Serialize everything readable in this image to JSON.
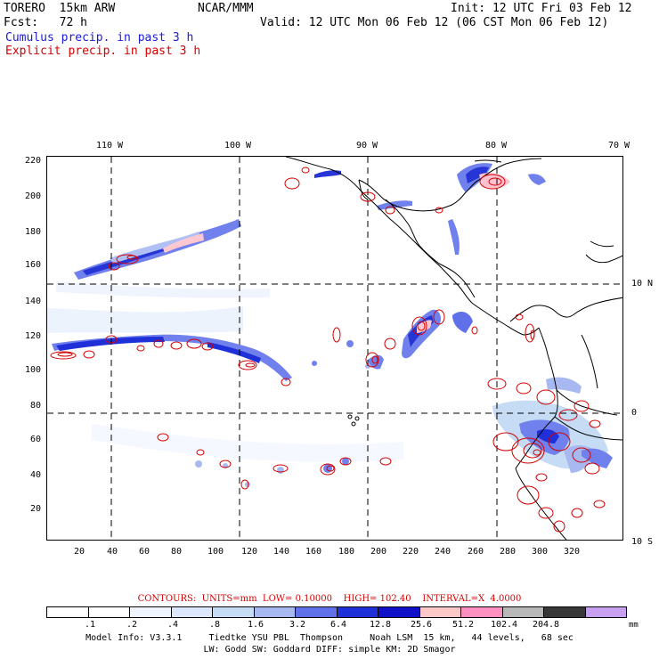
{
  "header": {
    "model": "TORERO  15km ARW",
    "center": "NCAR/MMM",
    "init": "Init: 12 UTC Fri 03 Feb 12",
    "fcst": "Fcst:   72 h",
    "valid": "Valid: 12 UTC Mon 06 Feb 12 (06 CST Mon 06 Feb 12)",
    "legend_cumulus": "Cumulus precip. in past 3 h",
    "legend_explicit": "Explicit precip. in past 3 h"
  },
  "map": {
    "top_lon_labels": [
      "110 W",
      "100 W",
      "90 W",
      "80 W",
      "70 W"
    ],
    "right_lat_labels": [
      "10 N",
      "0",
      "10 S"
    ],
    "left_ticks": [
      "220",
      "200",
      "180",
      "160",
      "140",
      "120",
      "100",
      "80",
      "60",
      "40",
      "20"
    ],
    "bottom_ticks": [
      "20",
      "40",
      "60",
      "80",
      "100",
      "120",
      "140",
      "160",
      "180",
      "200",
      "220",
      "240",
      "260",
      "280",
      "300",
      "320"
    ],
    "island_marker": "o"
  },
  "contours": {
    "label": "CONTOURS:  UNITS=mm  LOW= 0.10000    HIGH= 102.40    INTERVAL=X  4.0000"
  },
  "colorbar": {
    "labels": [
      ".1",
      ".2",
      ".4",
      ".8",
      "1.6",
      "3.2",
      "6.4",
      "12.8",
      "25.6",
      "51.2",
      "102.4",
      "204.8"
    ],
    "unit": "mm",
    "colors": [
      "#ffffff",
      "#ffffff",
      "#f0f4ff",
      "#dde8ff",
      "#c6dcf5",
      "#a8b8f0",
      "#6070e8",
      "#2030d8",
      "#1010c8",
      "#ffc8c8",
      "#ff90c0",
      "#b8b8b8",
      "#383838",
      "#c8a0f0"
    ]
  },
  "footer": {
    "line1": "Model Info: V3.3.1     Tiedtke YSU PBL  Thompson     Noah LSM  15 km,   44 levels,   68 sec",
    "line2": "LW: Godd SW: Goddard DIFF: simple KM: 2D Smagor"
  }
}
